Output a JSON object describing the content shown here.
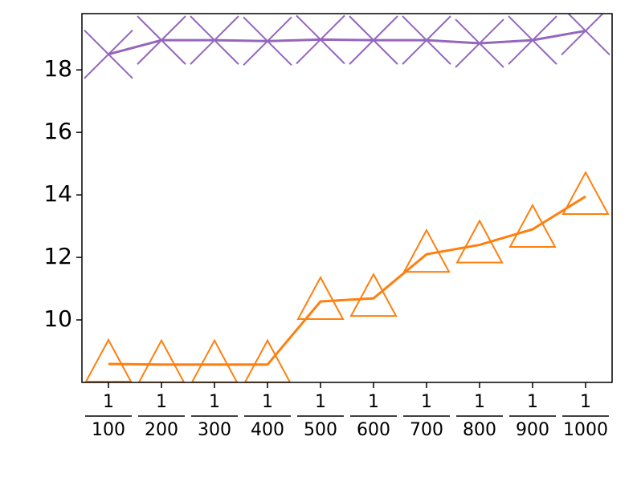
{
  "chart_data": {
    "type": "line",
    "categories": [
      {
        "numerator": "1",
        "denominator": "100"
      },
      {
        "numerator": "1",
        "denominator": "200"
      },
      {
        "numerator": "1",
        "denominator": "300"
      },
      {
        "numerator": "1",
        "denominator": "400"
      },
      {
        "numerator": "1",
        "denominator": "500"
      },
      {
        "numerator": "1",
        "denominator": "600"
      },
      {
        "numerator": "1",
        "denominator": "700"
      },
      {
        "numerator": "1",
        "denominator": "800"
      },
      {
        "numerator": "1",
        "denominator": "900"
      },
      {
        "numerator": "1",
        "denominator": "1000"
      }
    ],
    "series": [
      {
        "color": "#9467bd",
        "marker": "x",
        "values": [
          18.5,
          18.95,
          18.95,
          18.92,
          18.97,
          18.95,
          18.95,
          18.85,
          18.95,
          19.25
        ]
      },
      {
        "color": "#ff7f0e",
        "marker": "triangle",
        "values": [
          8.59,
          8.57,
          8.57,
          8.57,
          10.59,
          10.69,
          12.1,
          12.4,
          12.9,
          13.95
        ]
      }
    ],
    "ylim": [
      8.0,
      19.8
    ],
    "yticks": [
      10,
      12,
      14,
      16,
      18
    ],
    "grid": false
  }
}
